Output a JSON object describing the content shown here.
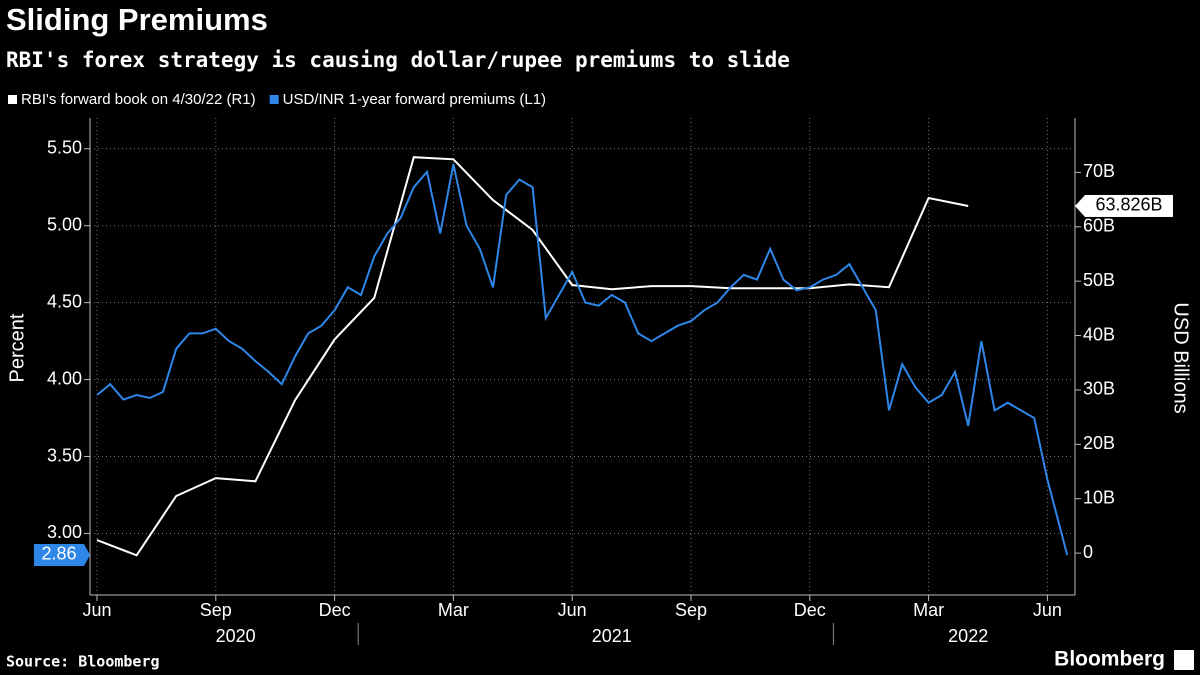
{
  "chart_data": {
    "type": "line",
    "title": "Sliding Premiums",
    "subtitle": "RBI's forex strategy is causing dollar/rupee premiums to slide",
    "source": "Source: Bloomberg",
    "brand": "Bloomberg",
    "ylabel": "Percent",
    "y2label": "USD Billions",
    "grid": true,
    "xticks": [
      {
        "value": "2020-06",
        "label": "Jun"
      },
      {
        "value": "2020-09",
        "label": "Sep"
      },
      {
        "value": "2020-12",
        "label": "Dec"
      },
      {
        "value": "2021-03",
        "label": "Mar"
      },
      {
        "value": "2021-06",
        "label": "Jun"
      },
      {
        "value": "2021-09",
        "label": "Sep"
      },
      {
        "value": "2021-12",
        "label": "Dec"
      },
      {
        "value": "2022-03",
        "label": "Mar"
      },
      {
        "value": "2022-06",
        "label": "Jun"
      }
    ],
    "x_groups": [
      "2020",
      "2021",
      "2022"
    ],
    "ylim": [
      2.6,
      5.7
    ],
    "yticks": [
      {
        "value": 3,
        "label": "3.00"
      },
      {
        "value": 3.5,
        "label": "3.50"
      },
      {
        "value": 4,
        "label": "4.00"
      },
      {
        "value": 4.5,
        "label": "4.50"
      },
      {
        "value": 5,
        "label": "5.00"
      },
      {
        "value": 5.5,
        "label": "5.50"
      }
    ],
    "y2lim": [
      -7.7,
      80
    ],
    "y2ticks": [
      {
        "value": 0,
        "label": "0"
      },
      {
        "value": 10,
        "label": "10B"
      },
      {
        "value": 20,
        "label": "20B"
      },
      {
        "value": 30,
        "label": "30B"
      },
      {
        "value": 40,
        "label": "40B"
      },
      {
        "value": 50,
        "label": "50B"
      },
      {
        "value": 60,
        "label": "60B"
      },
      {
        "value": 70,
        "label": "70B"
      }
    ],
    "series": [
      {
        "name": "RBI's forward book on 4/30/22 (R1)",
        "color": "#ffffff",
        "axis": "y2",
        "x": [
          "2020-06",
          "2020-07",
          "2020-08",
          "2020-09",
          "2020-10",
          "2020-11",
          "2020-12",
          "2021-01",
          "2021-02",
          "2021-03",
          "2021-04",
          "2021-05",
          "2021-06",
          "2021-07",
          "2021-08",
          "2021-09",
          "2021-10",
          "2021-11",
          "2021-12",
          "2022-01",
          "2022-02",
          "2022-03",
          "2022-04"
        ],
        "values": [
          2.4,
          -0.4,
          10.5,
          13.8,
          13.2,
          28.1,
          39.3,
          46.9,
          72.8,
          72.4,
          64.9,
          59.4,
          49.3,
          48.5,
          49.1,
          49.1,
          48.7,
          48.7,
          48.7,
          49.4,
          48.9,
          65.3,
          63.826
        ],
        "value_labels": [
          null,
          null,
          null,
          null,
          null,
          null,
          null,
          null,
          null,
          null,
          null,
          null,
          null,
          null,
          null,
          null,
          null,
          null,
          null,
          null,
          null,
          null,
          "63.826B"
        ]
      },
      {
        "name": "USD/INR 1-year forward premiums (L1)",
        "color": "#2e86e8",
        "x": [
          "2020-06",
          "2020-06",
          "2020-06",
          "2020-07",
          "2020-07",
          "2020-07",
          "2020-08",
          "2020-08",
          "2020-08",
          "2020-09",
          "2020-09",
          "2020-09",
          "2020-10",
          "2020-10",
          "2020-10",
          "2020-11",
          "2020-11",
          "2020-11",
          "2020-12",
          "2020-12",
          "2020-12",
          "2021-01",
          "2021-01",
          "2021-01",
          "2021-02",
          "2021-02",
          "2021-02",
          "2021-03",
          "2021-03",
          "2021-03",
          "2021-04",
          "2021-04",
          "2021-04",
          "2021-05",
          "2021-05",
          "2021-05",
          "2021-06",
          "2021-06",
          "2021-06",
          "2021-07",
          "2021-07",
          "2021-07",
          "2021-08",
          "2021-08",
          "2021-08",
          "2021-09",
          "2021-09",
          "2021-09",
          "2021-10",
          "2021-10",
          "2021-10",
          "2021-11",
          "2021-11",
          "2021-11",
          "2021-12",
          "2021-12",
          "2021-12",
          "2022-01",
          "2022-01",
          "2022-01",
          "2022-02",
          "2022-02",
          "2022-02",
          "2022-03",
          "2022-03",
          "2022-03",
          "2022-04",
          "2022-04",
          "2022-04",
          "2022-05",
          "2022-05",
          "2022-05",
          "2022-06",
          "2022-06"
        ],
        "values": [
          3.9,
          3.97,
          3.87,
          3.9,
          3.88,
          3.92,
          4.2,
          4.3,
          4.3,
          4.33,
          4.25,
          4.2,
          4.12,
          4.05,
          3.97,
          4.15,
          4.3,
          4.35,
          4.45,
          4.6,
          4.55,
          4.8,
          4.95,
          5.05,
          5.25,
          5.35,
          4.95,
          5.4,
          5.0,
          4.85,
          4.6,
          5.2,
          5.3,
          5.25,
          4.4,
          4.55,
          4.7,
          4.5,
          4.48,
          4.55,
          4.5,
          4.3,
          4.25,
          4.3,
          4.35,
          4.38,
          4.45,
          4.5,
          4.6,
          4.68,
          4.65,
          4.85,
          4.65,
          4.58,
          4.6,
          4.65,
          4.68,
          4.75,
          4.6,
          4.45,
          3.8,
          4.1,
          3.95,
          3.85,
          3.9,
          4.05,
          3.7,
          4.25,
          3.8,
          3.85,
          3.8,
          3.75,
          3.35,
          2.86
        ],
        "value_labels": [
          null,
          null,
          null,
          null,
          null,
          null,
          null,
          null,
          null,
          null,
          null,
          null,
          null,
          null,
          null,
          null,
          null,
          null,
          null,
          null,
          null,
          null,
          null,
          null,
          null,
          null,
          null,
          null,
          null,
          null,
          null,
          null,
          null,
          null,
          null,
          null,
          null,
          null,
          null,
          null,
          null,
          null,
          null,
          null,
          null,
          null,
          null,
          null,
          null,
          null,
          null,
          null,
          null,
          null,
          null,
          null,
          null,
          null,
          null,
          null,
          null,
          null,
          null,
          null,
          null,
          null,
          null,
          null,
          null,
          null,
          null,
          null,
          null,
          "2.86"
        ]
      }
    ]
  }
}
